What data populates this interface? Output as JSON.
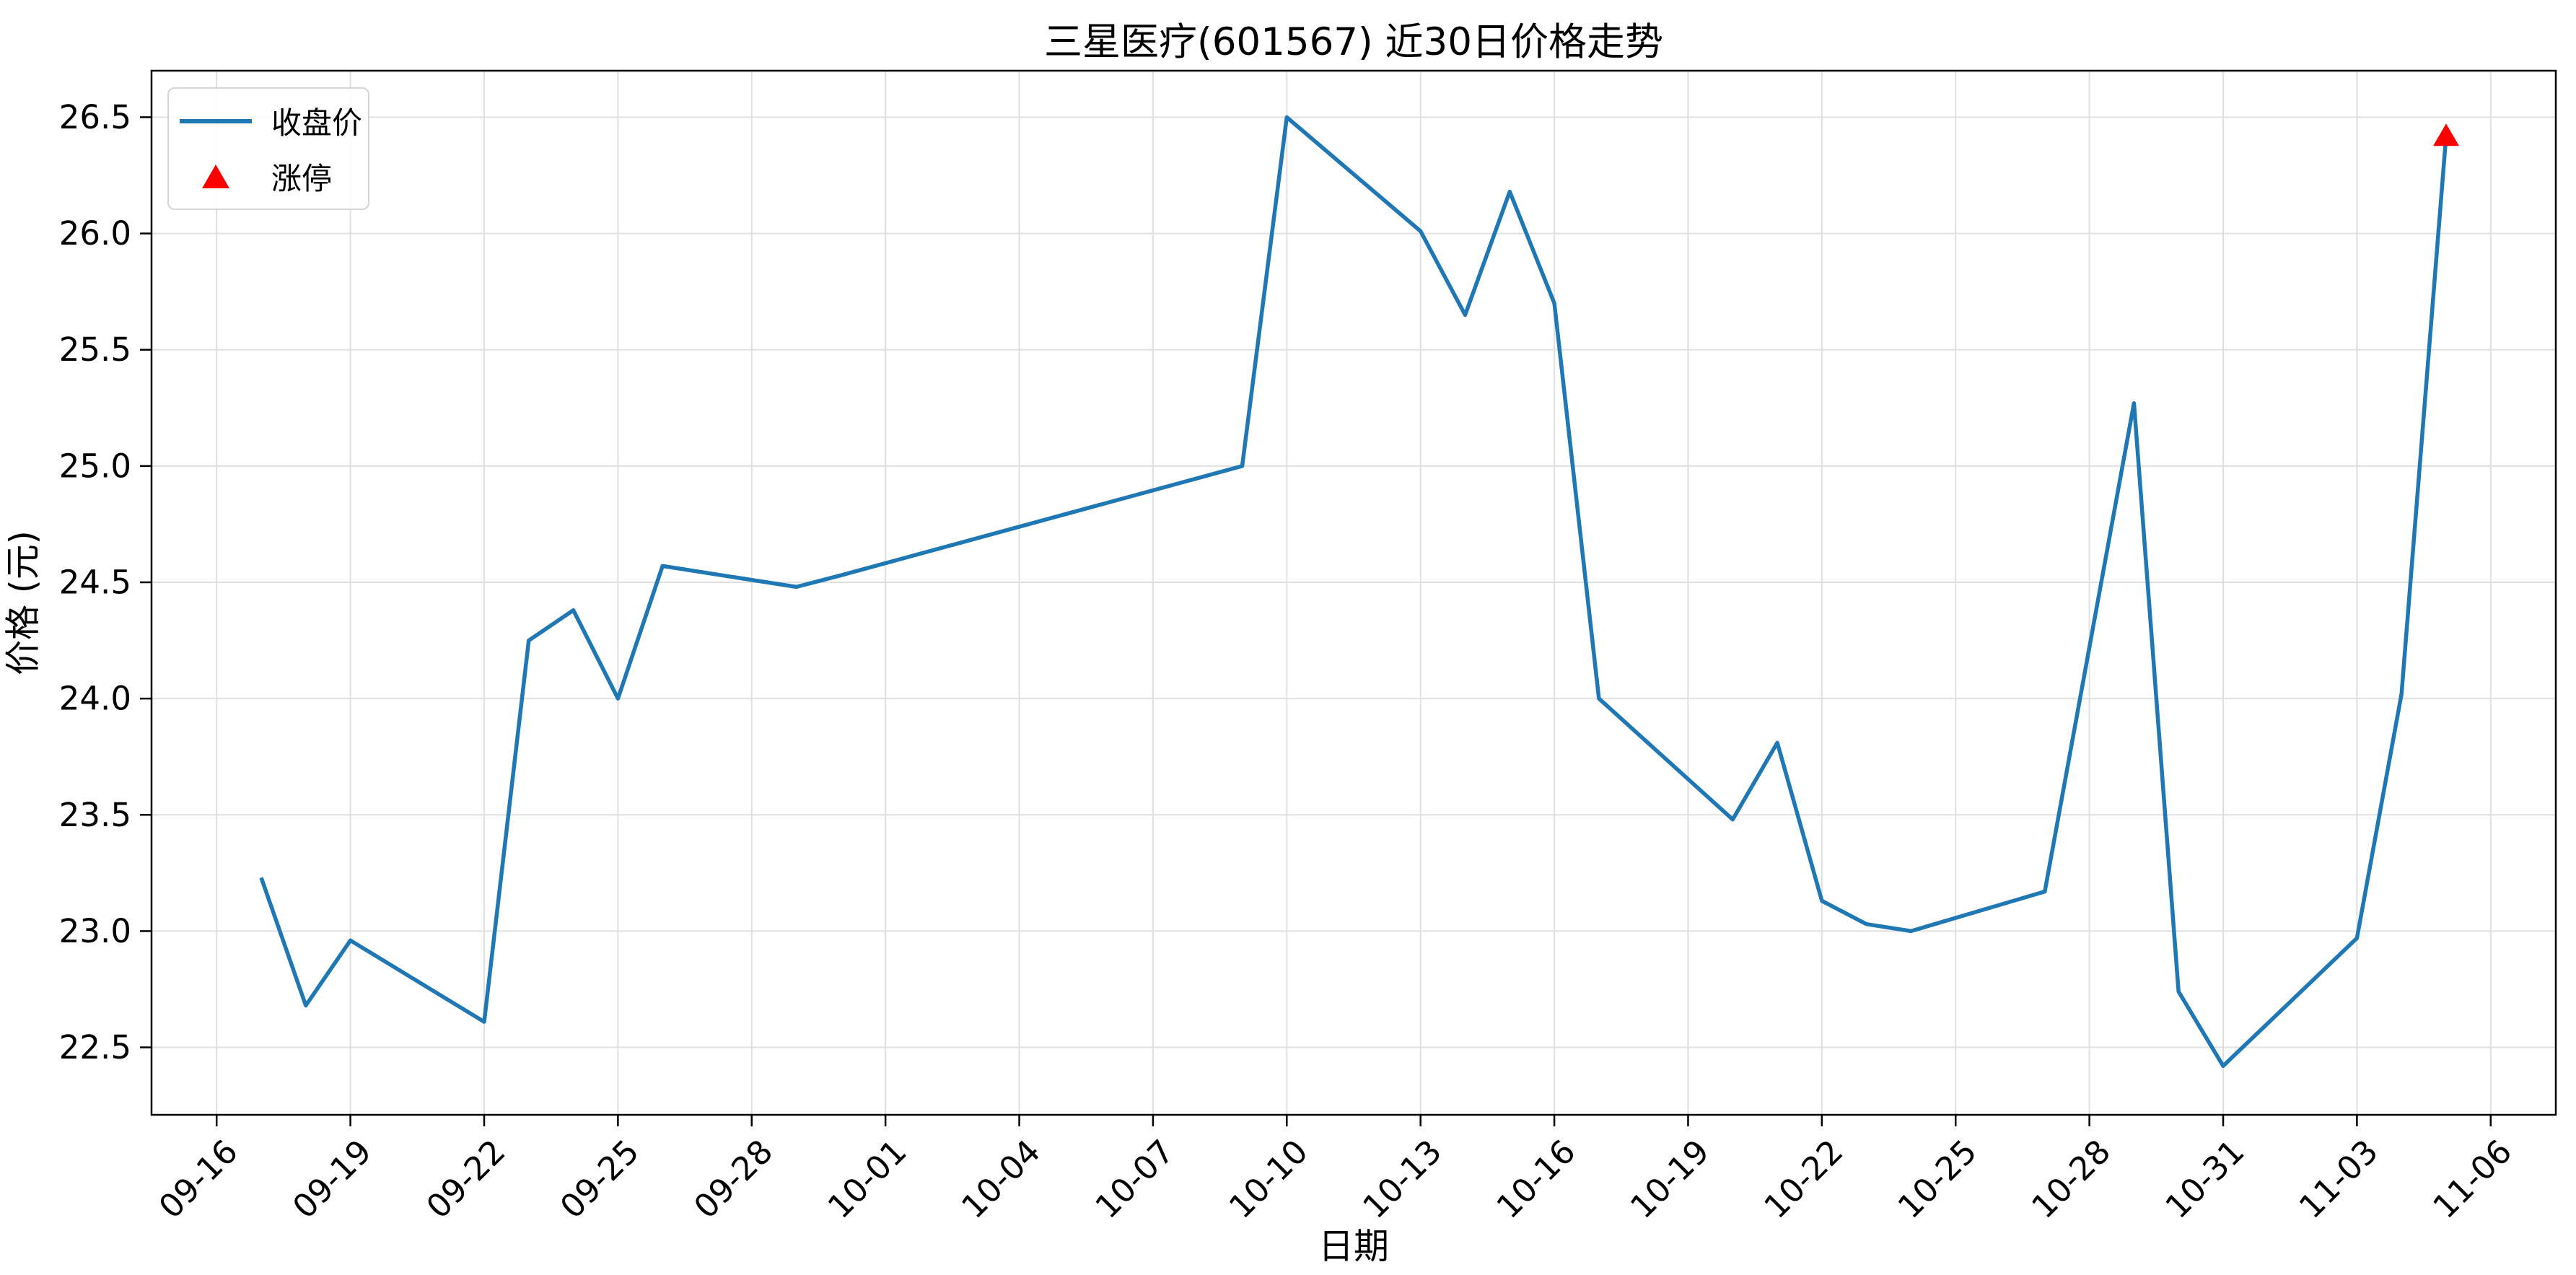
{
  "chart_data": {
    "type": "line",
    "title": "三星医疗(601567) 近30日价格走势",
    "xlabel": "日期",
    "ylabel": "价格 (元)",
    "grid": true,
    "legend_position": "upper-left",
    "x_start_date": "09-16",
    "xlim_days": [
      -1.46,
      52.46
    ],
    "ylim": [
      22.21,
      26.7
    ],
    "y_ticks": [
      22.5,
      23.0,
      23.5,
      24.0,
      24.5,
      25.0,
      25.5,
      26.0,
      26.5
    ],
    "x_ticks": [
      "09-16",
      "09-19",
      "09-22",
      "09-25",
      "09-28",
      "10-01",
      "10-04",
      "10-07",
      "10-10",
      "10-13",
      "10-16",
      "10-19",
      "10-22",
      "10-25",
      "10-28",
      "10-31",
      "11-03",
      "11-06"
    ],
    "x_tick_interval_days": 3,
    "series": [
      {
        "name": "收盘价",
        "color": "#1f77b4",
        "dates": [
          "09-17",
          "09-18",
          "09-19",
          "09-22",
          "09-23",
          "09-24",
          "09-25",
          "09-26",
          "09-29",
          "09-30",
          "10-09",
          "10-10",
          "10-13",
          "10-14",
          "10-15",
          "10-16",
          "10-17",
          "10-20",
          "10-21",
          "10-22",
          "10-23",
          "10-24",
          "10-27",
          "10-28",
          "10-29",
          "10-30",
          "10-31",
          "11-03",
          "11-04",
          "11-05"
        ],
        "values": [
          23.23,
          22.68,
          22.96,
          22.61,
          24.25,
          24.38,
          24.0,
          24.57,
          24.48,
          24.53,
          25.0,
          26.5,
          26.01,
          25.65,
          26.18,
          25.7,
          24.0,
          23.48,
          23.81,
          23.13,
          23.03,
          23.0,
          23.17,
          24.22,
          25.27,
          22.74,
          22.42,
          22.97,
          24.02,
          26.42
        ]
      }
    ],
    "markers": [
      {
        "name": "涨停",
        "symbol": "triangle-up",
        "color": "#ff0000",
        "date": "11-05",
        "value": 26.42
      }
    ],
    "colors": {
      "line": "#1f77b4",
      "marker": "#ff0000",
      "grid": "#e0e0e0",
      "spine": "#000000",
      "background": "#ffffff"
    }
  }
}
